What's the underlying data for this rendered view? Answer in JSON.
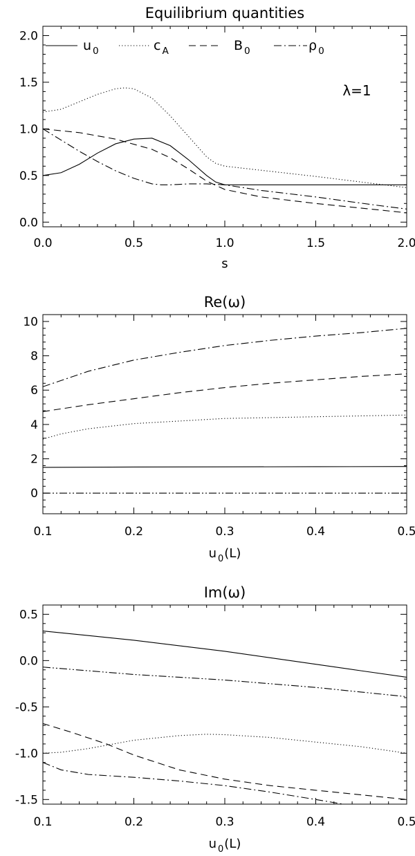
{
  "chart_data": [
    {
      "type": "line",
      "title": "Equilibrium quantities",
      "xlabel": "s",
      "ylabel": "",
      "xlim": [
        0,
        2
      ],
      "ylim": [
        -0.05,
        2.1
      ],
      "xticks": [
        "0.0",
        "0.5",
        "1.0",
        "1.5",
        "2.0"
      ],
      "yticks": [
        "0.0",
        "0.5",
        "1.0",
        "1.5",
        "2.0"
      ],
      "legend_position": "top",
      "annotation": "λ=1",
      "legend": [
        {
          "label": "u",
          "subscript": "0",
          "dash": "solid"
        },
        {
          "label": "c",
          "subscript": "A",
          "dash": "dotted"
        },
        {
          "label": "B",
          "subscript": "0",
          "dash": "dashed"
        },
        {
          "label": "ρ",
          "subscript": "0",
          "dash": "dashdot"
        }
      ],
      "series": [
        {
          "name": "u0",
          "dash": "solid",
          "x": [
            0,
            0.1,
            0.2,
            0.3,
            0.4,
            0.5,
            0.6,
            0.7,
            0.8,
            0.9,
            0.95,
            1.0,
            1.5,
            2.0
          ],
          "y": [
            0.5,
            0.53,
            0.62,
            0.74,
            0.84,
            0.89,
            0.9,
            0.82,
            0.67,
            0.5,
            0.43,
            0.4,
            0.4,
            0.4
          ]
        },
        {
          "name": "cA",
          "dash": "dotted",
          "x": [
            0,
            0.1,
            0.2,
            0.3,
            0.4,
            0.45,
            0.5,
            0.6,
            0.7,
            0.8,
            0.9,
            0.95,
            1.0,
            1.5,
            2.0
          ],
          "y": [
            1.18,
            1.21,
            1.29,
            1.37,
            1.43,
            1.44,
            1.43,
            1.33,
            1.14,
            0.92,
            0.7,
            0.63,
            0.6,
            0.49,
            0.37
          ]
        },
        {
          "name": "B0",
          "dash": "dashed",
          "x": [
            0,
            0.2,
            0.4,
            0.6,
            0.7,
            0.8,
            0.9,
            1.0,
            1.2,
            1.5,
            1.8,
            2.0
          ],
          "y": [
            1.0,
            0.96,
            0.89,
            0.78,
            0.69,
            0.57,
            0.44,
            0.35,
            0.27,
            0.2,
            0.14,
            0.1
          ]
        },
        {
          "name": "rho0",
          "dash": "dashdot",
          "x": [
            0,
            0.1,
            0.2,
            0.3,
            0.4,
            0.5,
            0.6,
            0.65,
            0.7,
            0.8,
            0.9,
            1.0,
            1.2,
            1.5,
            1.8,
            2.0
          ],
          "y": [
            1.0,
            0.88,
            0.76,
            0.65,
            0.55,
            0.47,
            0.41,
            0.4,
            0.4,
            0.41,
            0.41,
            0.4,
            0.34,
            0.27,
            0.19,
            0.14
          ]
        }
      ]
    },
    {
      "type": "line",
      "title": "Re(ω)",
      "xlabel": "u",
      "xlabel_subscript": "0",
      "xlabel_suffix": "(L)",
      "ylabel": "",
      "xlim": [
        0.1,
        0.5
      ],
      "ylim": [
        -1.2,
        10.4
      ],
      "xticks": [
        "0.1",
        "0.2",
        "0.3",
        "0.4",
        "0.5"
      ],
      "yticks": [
        "0",
        "2",
        "4",
        "6",
        "8",
        "10"
      ],
      "series": [
        {
          "dash": "dashdot",
          "x": [
            0.1,
            0.15,
            0.2,
            0.25,
            0.3,
            0.35,
            0.4,
            0.45,
            0.5
          ],
          "y": [
            6.2,
            7.1,
            7.75,
            8.2,
            8.6,
            8.9,
            9.15,
            9.35,
            9.6
          ]
        },
        {
          "dash": "dashed",
          "x": [
            0.1,
            0.15,
            0.2,
            0.25,
            0.3,
            0.35,
            0.4,
            0.45,
            0.5
          ],
          "y": [
            4.75,
            5.15,
            5.5,
            5.85,
            6.15,
            6.4,
            6.6,
            6.8,
            6.95
          ]
        },
        {
          "dash": "dotted",
          "x": [
            0.1,
            0.12,
            0.15,
            0.2,
            0.25,
            0.3,
            0.35,
            0.4,
            0.45,
            0.5
          ],
          "y": [
            3.15,
            3.45,
            3.75,
            4.05,
            4.2,
            4.35,
            4.4,
            4.45,
            4.5,
            4.55
          ]
        },
        {
          "dash": "solid",
          "x": [
            0.1,
            0.2,
            0.3,
            0.4,
            0.5
          ],
          "y": [
            1.5,
            1.52,
            1.53,
            1.54,
            1.55
          ]
        },
        {
          "dash": "dashdotdot",
          "x": [
            0.1,
            0.2,
            0.3,
            0.4,
            0.5
          ],
          "y": [
            0.0,
            0.0,
            0.0,
            0.0,
            0.0
          ]
        }
      ]
    },
    {
      "type": "line",
      "title": "Im(ω)",
      "xlabel": "u",
      "xlabel_subscript": "0",
      "xlabel_suffix": "(L)",
      "ylabel": "",
      "xlim": [
        0.1,
        0.5
      ],
      "ylim": [
        -1.55,
        0.6
      ],
      "xticks": [
        "0.1",
        "0.2",
        "0.3",
        "0.4",
        "0.5"
      ],
      "yticks": [
        "0.5",
        "0.0",
        "-0.5",
        "-1.0",
        "-1.5"
      ],
      "series": [
        {
          "dash": "solid",
          "x": [
            0.1,
            0.15,
            0.2,
            0.25,
            0.3,
            0.35,
            0.4,
            0.45,
            0.5
          ],
          "y": [
            0.32,
            0.27,
            0.22,
            0.16,
            0.1,
            0.03,
            -0.04,
            -0.11,
            -0.18
          ]
        },
        {
          "dash": "dashdotdot",
          "x": [
            0.1,
            0.15,
            0.2,
            0.25,
            0.3,
            0.35,
            0.4,
            0.45,
            0.5
          ],
          "y": [
            -0.07,
            -0.11,
            -0.15,
            -0.18,
            -0.21,
            -0.25,
            -0.29,
            -0.34,
            -0.39
          ]
        },
        {
          "dash": "dotted",
          "x": [
            0.1,
            0.12,
            0.15,
            0.2,
            0.25,
            0.28,
            0.3,
            0.35,
            0.4,
            0.45,
            0.5
          ],
          "y": [
            -1.0,
            -0.99,
            -0.95,
            -0.86,
            -0.81,
            -0.795,
            -0.8,
            -0.83,
            -0.88,
            -0.93,
            -1.0
          ]
        },
        {
          "dash": "dashed",
          "x": [
            0.1,
            0.13,
            0.17,
            0.2,
            0.25,
            0.3,
            0.35,
            0.4,
            0.45,
            0.5
          ],
          "y": [
            -0.68,
            -0.77,
            -0.9,
            -1.02,
            -1.18,
            -1.28,
            -1.35,
            -1.4,
            -1.45,
            -1.5
          ]
        },
        {
          "dash": "dashdot",
          "x": [
            0.1,
            0.12,
            0.15,
            0.2,
            0.25,
            0.3,
            0.35,
            0.4,
            0.43
          ],
          "y": [
            -1.1,
            -1.18,
            -1.23,
            -1.26,
            -1.3,
            -1.35,
            -1.42,
            -1.5,
            -1.55
          ]
        }
      ]
    }
  ]
}
